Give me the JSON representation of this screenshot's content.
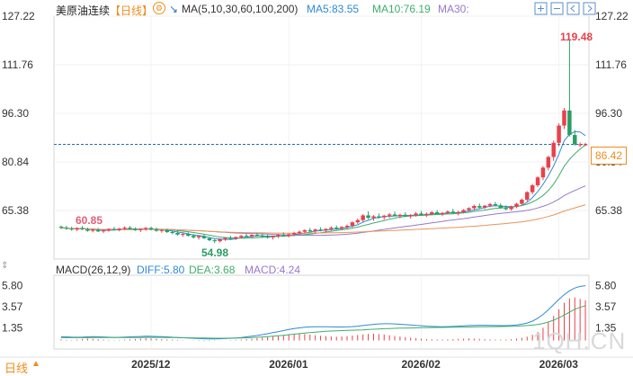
{
  "header": {
    "title": "美原油连续",
    "period": "【日线】",
    "ma_label": "MA(5,10,30,60,100,200)",
    "ma5": "MA5:83.55",
    "ma10": "MA10:76.19",
    "ma30": "MA30:"
  },
  "macd_header": {
    "label": "MACD(26,12,9)",
    "diff": "DIFF:5.80",
    "dea": "DEA:3.68",
    "macd": "MACD:4.24"
  },
  "footer": {
    "period_button": "日线"
  },
  "current_price": "86.42",
  "high_label": "119.48",
  "low_label": "54.98",
  "left_label": "60.85",
  "watermark": "1QH.CN",
  "colors": {
    "up": "#e8414b",
    "down": "#2a9d66",
    "ma5": "#2f8ad8",
    "ma10": "#3fae6b",
    "ma30": "#9a77c9",
    "ma60": "#e8945a",
    "price_line": "#1f6fb5",
    "accent": "#f08c1a"
  },
  "chart_data": [
    {
      "type": "candlestick",
      "title": "美原油连续 日线",
      "y_ticks": [
        "127.22",
        "111.76",
        "96.30",
        "80.84",
        "65.38"
      ],
      "ylim": [
        49.9,
        127.22
      ],
      "x_labels": [
        "2025/12",
        "2026/01",
        "2026/02",
        "2026/03"
      ],
      "label_positions": [
        17,
        43,
        68,
        94
      ],
      "n_bars": 100,
      "candles": [
        [
          60.2,
          60.6,
          59.4,
          59.9
        ],
        [
          59.9,
          60.5,
          59.2,
          59.6
        ],
        [
          59.6,
          60.2,
          58.9,
          59.3
        ],
        [
          59.3,
          60.0,
          58.8,
          59.8
        ],
        [
          59.8,
          60.4,
          59.1,
          59.4
        ],
        [
          59.4,
          59.9,
          58.6,
          58.9
        ],
        [
          58.9,
          59.6,
          58.4,
          59.2
        ],
        [
          59.2,
          59.8,
          58.5,
          58.7
        ],
        [
          58.7,
          59.3,
          58.2,
          59.0
        ],
        [
          59.0,
          59.7,
          58.6,
          59.5
        ],
        [
          59.5,
          60.1,
          59.0,
          59.2
        ],
        [
          59.2,
          59.8,
          58.7,
          59.6
        ],
        [
          59.6,
          60.3,
          59.1,
          59.9
        ],
        [
          59.9,
          60.4,
          59.2,
          59.5
        ],
        [
          59.5,
          60.0,
          58.9,
          59.1
        ],
        [
          59.1,
          59.7,
          58.5,
          59.4
        ],
        [
          59.4,
          60.1,
          58.9,
          59.8
        ],
        [
          59.8,
          60.2,
          59.0,
          59.3
        ],
        [
          59.3,
          59.9,
          58.6,
          58.9
        ],
        [
          58.9,
          59.5,
          58.3,
          59.1
        ],
        [
          59.1,
          59.6,
          58.2,
          58.5
        ],
        [
          58.5,
          59.0,
          57.8,
          58.2
        ],
        [
          58.2,
          58.8,
          57.4,
          57.7
        ],
        [
          57.7,
          58.3,
          57.0,
          57.9
        ],
        [
          57.9,
          58.4,
          57.1,
          57.3
        ],
        [
          57.3,
          57.9,
          56.4,
          56.8
        ],
        [
          56.8,
          57.5,
          56.1,
          57.2
        ],
        [
          57.2,
          57.7,
          56.3,
          56.5
        ],
        [
          56.5,
          57.0,
          55.6,
          55.9
        ],
        [
          55.9,
          56.4,
          54.98,
          55.6
        ],
        [
          55.6,
          56.5,
          55.2,
          56.2
        ],
        [
          56.2,
          56.9,
          55.7,
          56.6
        ],
        [
          56.6,
          57.3,
          56.0,
          56.4
        ],
        [
          56.4,
          57.1,
          56.0,
          56.9
        ],
        [
          56.9,
          57.6,
          56.4,
          57.3
        ],
        [
          57.3,
          58.0,
          56.8,
          57.1
        ],
        [
          57.1,
          57.8,
          56.6,
          57.6
        ],
        [
          57.6,
          58.2,
          57.0,
          57.4
        ],
        [
          57.4,
          58.0,
          56.7,
          57.0
        ],
        [
          57.0,
          57.7,
          56.4,
          56.8
        ],
        [
          56.8,
          57.4,
          56.1,
          57.2
        ],
        [
          57.2,
          57.9,
          56.6,
          57.6
        ],
        [
          57.6,
          58.4,
          57.1,
          57.3
        ],
        [
          57.3,
          58.0,
          56.8,
          57.8
        ],
        [
          57.8,
          58.6,
          57.2,
          58.2
        ],
        [
          58.2,
          59.0,
          57.7,
          58.6
        ],
        [
          58.6,
          59.4,
          58.0,
          59.1
        ],
        [
          59.1,
          59.8,
          58.4,
          58.8
        ],
        [
          58.8,
          59.6,
          58.3,
          59.3
        ],
        [
          59.3,
          60.0,
          58.7,
          59.0
        ],
        [
          59.0,
          59.7,
          58.4,
          59.5
        ],
        [
          59.5,
          60.3,
          58.9,
          59.9
        ],
        [
          59.9,
          60.6,
          59.2,
          59.6
        ],
        [
          59.6,
          60.4,
          59.1,
          60.1
        ],
        [
          60.1,
          60.9,
          59.5,
          60.5
        ],
        [
          60.5,
          61.9,
          60.0,
          61.6
        ],
        [
          61.6,
          62.8,
          61.1,
          62.3
        ],
        [
          62.3,
          64.2,
          61.8,
          63.8
        ],
        [
          63.8,
          65.1,
          62.6,
          63.0
        ],
        [
          63.0,
          63.9,
          62.1,
          63.5
        ],
        [
          63.5,
          64.4,
          62.8,
          63.2
        ],
        [
          63.2,
          64.0,
          62.4,
          63.7
        ],
        [
          63.7,
          64.6,
          63.0,
          64.1
        ],
        [
          64.1,
          65.0,
          63.5,
          63.6
        ],
        [
          63.6,
          64.3,
          62.9,
          64.0
        ],
        [
          64.0,
          64.8,
          63.3,
          63.5
        ],
        [
          63.5,
          64.2,
          62.8,
          63.9
        ],
        [
          63.9,
          64.9,
          63.4,
          64.4
        ],
        [
          64.4,
          65.2,
          63.7,
          63.9
        ],
        [
          63.9,
          64.7,
          63.3,
          64.3
        ],
        [
          64.3,
          65.2,
          63.8,
          64.8
        ],
        [
          64.8,
          65.5,
          64.0,
          64.2
        ],
        [
          64.2,
          64.9,
          63.6,
          64.6
        ],
        [
          64.6,
          65.4,
          64.1,
          65.0
        ],
        [
          65.0,
          65.9,
          64.3,
          64.5
        ],
        [
          64.5,
          65.2,
          63.8,
          64.9
        ],
        [
          64.9,
          65.8,
          64.4,
          65.5
        ],
        [
          65.5,
          66.4,
          65.0,
          66.1
        ],
        [
          66.1,
          67.2,
          65.6,
          66.8
        ],
        [
          66.8,
          67.6,
          66.0,
          66.3
        ],
        [
          66.3,
          67.1,
          65.8,
          66.9
        ],
        [
          66.9,
          67.8,
          66.4,
          67.4
        ],
        [
          67.4,
          68.1,
          66.8,
          67.0
        ],
        [
          67.0,
          67.6,
          65.9,
          66.2
        ],
        [
          66.2,
          67.0,
          65.4,
          65.8
        ],
        [
          65.8,
          66.9,
          65.3,
          66.6
        ],
        [
          66.6,
          67.8,
          66.1,
          67.5
        ],
        [
          67.5,
          69.2,
          67.0,
          68.8
        ],
        [
          68.8,
          71.5,
          68.2,
          71.2
        ],
        [
          71.2,
          73.8,
          70.5,
          73.4
        ],
        [
          73.4,
          76.2,
          72.8,
          75.9
        ],
        [
          75.9,
          79.5,
          75.0,
          79.0
        ],
        [
          79.0,
          82.8,
          78.1,
          82.4
        ],
        [
          82.4,
          87.6,
          81.2,
          86.9
        ],
        [
          86.9,
          93.1,
          85.8,
          92.4
        ],
        [
          92.4,
          98.0,
          91.3,
          97.2
        ],
        [
          97.2,
          119.48,
          88.9,
          89.4
        ],
        [
          89.4,
          91.0,
          86.0,
          86.42
        ],
        [
          86.42,
          87.0,
          85.6,
          86.42
        ],
        [
          86.42,
          86.9,
          85.9,
          86.42
        ]
      ]
    },
    {
      "type": "bar",
      "title": "MACD(26,12,9)",
      "y_ticks": [
        "5.80",
        "3.57",
        "1.35"
      ],
      "ylim": [
        -0.9,
        6.9
      ],
      "macd_hist": [
        0.12,
        0.08,
        0.05,
        0.1,
        0.15,
        0.2,
        0.18,
        0.14,
        0.1,
        0.06,
        0.03,
        0.05,
        0.09,
        0.12,
        0.16,
        0.2,
        0.24,
        0.21,
        0.18,
        0.15,
        0.12,
        0.09,
        0.06,
        0.03,
        0.0,
        -0.03,
        -0.05,
        -0.07,
        -0.06,
        -0.04,
        -0.02,
        0.01,
        0.04,
        0.07,
        0.1,
        0.14,
        0.18,
        0.24,
        0.3,
        0.37,
        0.45,
        0.52,
        0.6,
        0.66,
        0.7,
        0.72,
        0.68,
        0.62,
        0.56,
        0.5,
        0.46,
        0.43,
        0.4,
        0.42,
        0.46,
        0.52,
        0.58,
        0.64,
        0.7,
        0.72,
        0.68,
        0.62,
        0.55,
        0.48,
        0.42,
        0.36,
        0.3,
        0.25,
        0.2,
        0.16,
        0.13,
        0.11,
        0.1,
        0.12,
        0.15,
        0.18,
        0.2,
        0.22,
        0.2,
        0.17,
        0.14,
        0.12,
        0.1,
        0.09,
        0.1,
        0.14,
        0.2,
        0.28,
        0.4,
        0.6,
        0.9,
        1.35,
        1.9,
        2.6,
        3.3,
        4.0,
        4.45,
        4.55,
        4.4,
        4.24
      ],
      "diff_line": [
        0.4,
        0.38,
        0.36,
        0.35,
        0.36,
        0.38,
        0.4,
        0.39,
        0.37,
        0.35,
        0.33,
        0.34,
        0.36,
        0.38,
        0.4,
        0.42,
        0.45,
        0.44,
        0.42,
        0.4,
        0.38,
        0.35,
        0.32,
        0.29,
        0.26,
        0.23,
        0.2,
        0.18,
        0.17,
        0.17,
        0.18,
        0.2,
        0.23,
        0.27,
        0.32,
        0.38,
        0.45,
        0.53,
        0.62,
        0.72,
        0.83,
        0.94,
        1.05,
        1.16,
        1.26,
        1.34,
        1.4,
        1.44,
        1.46,
        1.46,
        1.45,
        1.44,
        1.43,
        1.43,
        1.44,
        1.47,
        1.52,
        1.58,
        1.65,
        1.71,
        1.75,
        1.77,
        1.77,
        1.75,
        1.72,
        1.68,
        1.64,
        1.6,
        1.56,
        1.52,
        1.49,
        1.47,
        1.46,
        1.47,
        1.49,
        1.52,
        1.55,
        1.58,
        1.6,
        1.61,
        1.61,
        1.6,
        1.58,
        1.57,
        1.57,
        1.6,
        1.65,
        1.73,
        1.85,
        2.05,
        2.35,
        2.75,
        3.25,
        3.8,
        4.35,
        4.85,
        5.25,
        5.55,
        5.72,
        5.8
      ],
      "dea_line": [
        0.3,
        0.3,
        0.3,
        0.3,
        0.3,
        0.3,
        0.31,
        0.31,
        0.31,
        0.31,
        0.31,
        0.31,
        0.31,
        0.32,
        0.32,
        0.32,
        0.33,
        0.33,
        0.33,
        0.33,
        0.32,
        0.32,
        0.31,
        0.3,
        0.29,
        0.28,
        0.27,
        0.26,
        0.25,
        0.24,
        0.24,
        0.24,
        0.25,
        0.26,
        0.27,
        0.29,
        0.31,
        0.34,
        0.37,
        0.41,
        0.45,
        0.5,
        0.55,
        0.61,
        0.67,
        0.73,
        0.79,
        0.84,
        0.89,
        0.93,
        0.97,
        1.0,
        1.03,
        1.05,
        1.07,
        1.09,
        1.11,
        1.13,
        1.16,
        1.19,
        1.22,
        1.25,
        1.27,
        1.29,
        1.31,
        1.32,
        1.33,
        1.34,
        1.35,
        1.36,
        1.37,
        1.38,
        1.38,
        1.39,
        1.4,
        1.41,
        1.42,
        1.43,
        1.44,
        1.45,
        1.46,
        1.47,
        1.47,
        1.48,
        1.49,
        1.5,
        1.52,
        1.55,
        1.58,
        1.63,
        1.7,
        1.8,
        1.95,
        2.15,
        2.4,
        2.7,
        3.0,
        3.3,
        3.5,
        3.68
      ]
    }
  ]
}
